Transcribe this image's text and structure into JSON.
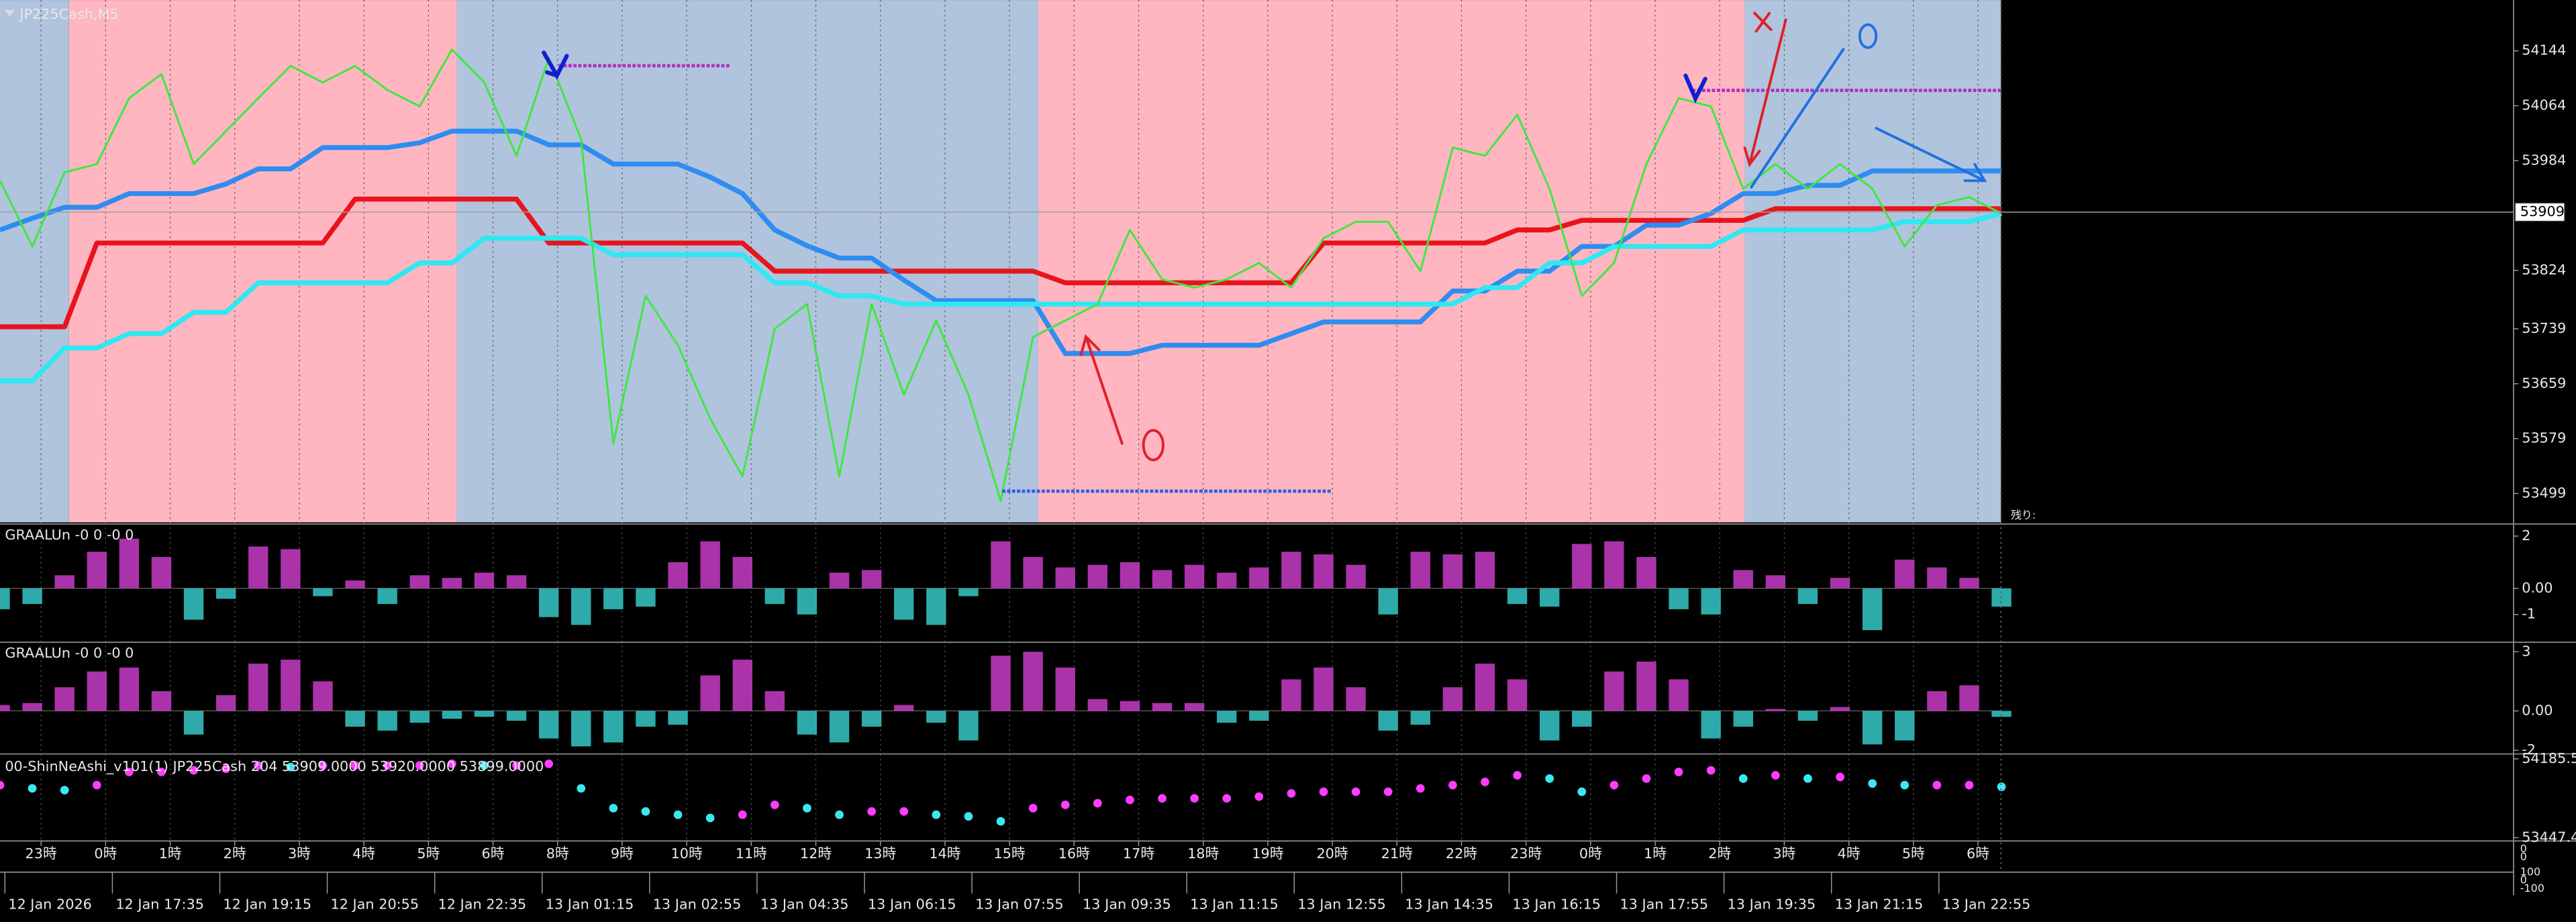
{
  "chart_data": [
    {
      "type": "line",
      "title": "JP225Cash,M5",
      "ylim": [
        53457,
        54218
      ],
      "yticks": [
        53499,
        53579,
        53659,
        53739,
        53824,
        53984,
        54064,
        54144
      ],
      "last_price": 53909,
      "remaining_label": "残り:",
      "series": [
        {
          "color": "#e8141c",
          "values": [
            53742,
            53742,
            53742,
            53864,
            53864,
            53864,
            53864,
            53864,
            53864,
            53864,
            53864,
            53928,
            53928,
            53928,
            53928,
            53928,
            53928,
            53864,
            53864,
            53864,
            53864,
            53864,
            53864,
            53864,
            53823,
            53823,
            53823,
            53823,
            53823,
            53823,
            53823,
            53823,
            53823,
            53806,
            53806,
            53806,
            53806,
            53806,
            53806,
            53806,
            53806,
            53864,
            53864,
            53864,
            53864,
            53864,
            53864,
            53883,
            53883,
            53897,
            53897,
            53897,
            53897,
            53897,
            53897,
            53914,
            53914,
            53914,
            53914,
            53914,
            53914,
            53914,
            53914
          ]
        },
        {
          "color": "#2f8cf0",
          "values": [
            53883,
            53900,
            53916,
            53916,
            53936,
            53936,
            53936,
            53950,
            53972,
            53972,
            54003,
            54003,
            54003,
            54010,
            54027,
            54027,
            54027,
            54007,
            54007,
            53979,
            53979,
            53979,
            53960,
            53936,
            53883,
            53860,
            53842,
            53842,
            53810,
            53780,
            53780,
            53780,
            53780,
            53703,
            53703,
            53703,
            53715,
            53715,
            53715,
            53715,
            53732,
            53749,
            53749,
            53749,
            53749,
            53794,
            53794,
            53823,
            53823,
            53859,
            53859,
            53890,
            53890,
            53907,
            53936,
            53936,
            53948,
            53948,
            53969,
            53969,
            53969,
            53969,
            53969
          ]
        },
        {
          "color": "#2ee8f2",
          "values": [
            53663,
            53663,
            53711,
            53711,
            53732,
            53732,
            53763,
            53763,
            53806,
            53806,
            53806,
            53806,
            53806,
            53835,
            53835,
            53871,
            53871,
            53871,
            53871,
            53847,
            53847,
            53847,
            53847,
            53847,
            53806,
            53806,
            53787,
            53787,
            53775,
            53775,
            53775,
            53775,
            53775,
            53775,
            53775,
            53775,
            53775,
            53775,
            53775,
            53775,
            53775,
            53775,
            53775,
            53775,
            53775,
            53775,
            53799,
            53799,
            53835,
            53835,
            53859,
            53859,
            53859,
            53859,
            53883,
            53883,
            53883,
            53883,
            53883,
            53895,
            53895,
            53895,
            53907
          ]
        },
        {
          "color": "#3ee83e",
          "values": [
            53955,
            53859,
            53967,
            53979,
            54075,
            54110,
            53979,
            54027,
            54075,
            54122,
            54098,
            54122,
            54087,
            54063,
            54146,
            54098,
            53991,
            54134,
            54015,
            53572,
            53787,
            53715,
            53608,
            53524,
            53739,
            53775,
            53524,
            53775,
            53643,
            53751,
            53643,
            53488,
            53727,
            53751,
            53775,
            53883,
            53811,
            53799,
            53811,
            53835,
            53799,
            53871,
            53895,
            53895,
            53823,
            54003,
            53991,
            54051,
            53943,
            53787,
            53835,
            53979,
            54075,
            54063,
            53943,
            53979,
            53943,
            53979,
            53943,
            53859,
            53919,
            53931,
            53907
          ]
        }
      ]
    },
    {
      "type": "bar",
      "title": "GRAALUn -0 0 -0 0",
      "ylim": [
        -2,
        2.4
      ],
      "yticks": [
        2,
        {
          "value": 0,
          "label": "0.00"
        },
        -1
      ],
      "up_color": "#c83cc8",
      "down_color": "#36c8c8",
      "values": [
        -0.8,
        -0.6,
        0.5,
        1.4,
        1.9,
        1.2,
        -1.2,
        -0.4,
        1.6,
        1.5,
        -0.3,
        0.3,
        -0.6,
        0.5,
        0.4,
        0.6,
        0.5,
        -1.1,
        -1.4,
        -0.8,
        -0.7,
        1.0,
        1.8,
        1.2,
        -0.6,
        -1.0,
        0.6,
        0.7,
        -1.2,
        -1.4,
        -0.3,
        1.8,
        1.2,
        0.8,
        0.9,
        1.0,
        0.7,
        0.9,
        0.6,
        0.8,
        1.4,
        1.3,
        0.9,
        -1.0,
        1.4,
        1.3,
        1.4,
        -0.6,
        -0.7,
        1.7,
        1.8,
        1.2,
        -0.8,
        -1.0,
        0.7,
        0.5,
        -0.6,
        0.4,
        -1.6,
        1.1,
        0.8,
        0.4,
        -0.7
      ]
    },
    {
      "type": "bar",
      "title": "GRAALUn -0 0 -0 0",
      "ylim": [
        -2.1,
        3.4
      ],
      "yticks": [
        3,
        {
          "value": 0,
          "label": "0.00"
        },
        -2
      ],
      "up_color": "#c83cc8",
      "down_color": "#36c8c8",
      "values": [
        0.3,
        0.4,
        1.2,
        2.0,
        2.2,
        1.0,
        -1.2,
        0.8,
        2.4,
        2.6,
        1.5,
        -0.8,
        -1.0,
        -0.6,
        -0.4,
        -0.3,
        -0.5,
        -1.4,
        -1.8,
        -1.6,
        -0.8,
        -0.7,
        1.8,
        2.6,
        1.0,
        -1.2,
        -1.6,
        -0.8,
        0.3,
        -0.6,
        -1.5,
        2.8,
        3.0,
        2.2,
        0.6,
        0.5,
        0.4,
        0.4,
        -0.6,
        -0.5,
        1.6,
        2.2,
        1.2,
        -1.0,
        -0.7,
        1.2,
        2.4,
        1.6,
        -1.5,
        -0.8,
        2.0,
        2.5,
        1.6,
        -1.4,
        -0.8,
        0.1,
        -0.5,
        0.2,
        -1.7,
        -1.5,
        1.0,
        1.3,
        -0.3
      ]
    },
    {
      "type": "scatter",
      "title": "00-ShinNeAshi_v101(1) JP225Cash 204 53909.0000 53920.0000 53899.0000",
      "ylim": [
        53447.45,
        54185.55
      ],
      "yticks": [
        54185.55,
        53447.45
      ],
      "up_color": "#ff3cff",
      "down_color": "#3ce8f0",
      "values": [
        53940,
        53909,
        53893,
        53940,
        54063,
        54063,
        54078,
        54093,
        54124,
        54109,
        54124,
        54124,
        54124,
        54124,
        54139,
        54124,
        54124,
        54139,
        53909,
        53724,
        53693,
        53663,
        53632,
        53663,
        53755,
        53724,
        53663,
        53693,
        53693,
        53663,
        53647,
        53601,
        53724,
        53755,
        53770,
        53801,
        53816,
        53816,
        53816,
        53832,
        53862,
        53878,
        53878,
        53878,
        53909,
        53940,
        53970,
        54032,
        54001,
        53878,
        53940,
        54001,
        54063,
        54078,
        54001,
        54032,
        54001,
        54016,
        53955,
        53940,
        53940,
        53940,
        53924
      ]
    }
  ],
  "time_axis": {
    "hours": [
      "23時",
      "0時",
      "1時",
      "2時",
      "3時",
      "4時",
      "5時",
      "6時",
      "8時",
      "9時",
      "10時",
      "11時",
      "12時",
      "13時",
      "14時",
      "15時",
      "16時",
      "17時",
      "18時",
      "19時",
      "20時",
      "21時",
      "22時",
      "23時",
      "0時",
      "1時",
      "2時",
      "3時",
      "4時",
      "5時",
      "6時"
    ],
    "dates": [
      "12 Jan 2026",
      "12 Jan 17:35",
      "12 Jan 19:15",
      "12 Jan 20:55",
      "12 Jan 22:35",
      "13 Jan 01:15",
      "13 Jan 02:55",
      "13 Jan 04:35",
      "13 Jan 06:15",
      "13 Jan 07:55",
      "13 Jan 09:35",
      "13 Jan 11:15",
      "13 Jan 12:55",
      "13 Jan 14:35",
      "13 Jan 16:15",
      "13 Jan 17:55",
      "13 Jan 19:35",
      "13 Jan 21:15",
      "13 Jan 22:55"
    ],
    "right_labels": [
      "0",
      "0",
      "100",
      "0",
      "-100"
    ]
  }
}
